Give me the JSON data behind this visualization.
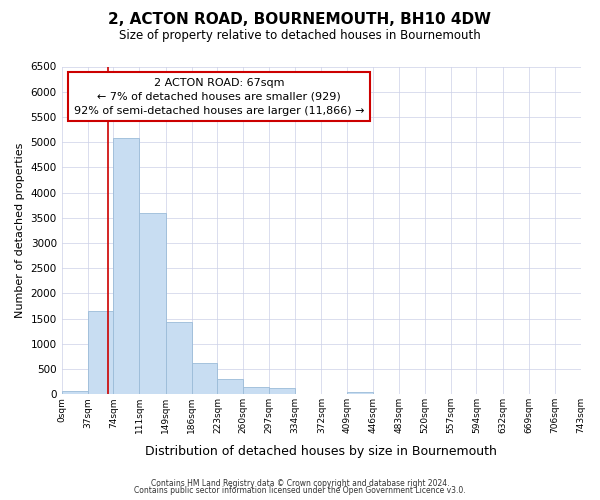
{
  "title": "2, ACTON ROAD, BOURNEMOUTH, BH10 4DW",
  "subtitle": "Size of property relative to detached houses in Bournemouth",
  "xlabel": "Distribution of detached houses by size in Bournemouth",
  "ylabel": "Number of detached properties",
  "bar_edges": [
    0,
    37,
    74,
    111,
    149,
    186,
    223,
    260,
    297,
    334,
    372,
    409,
    446,
    483,
    520,
    557,
    594,
    632,
    669,
    706,
    743
  ],
  "bar_heights": [
    70,
    1650,
    5080,
    3600,
    1430,
    620,
    310,
    150,
    120,
    0,
    0,
    50,
    0,
    0,
    0,
    0,
    0,
    0,
    0,
    0
  ],
  "bar_color": "#c8ddf2",
  "bar_edgecolor": "#9bbbd8",
  "property_line_x": 67,
  "property_line_color": "#cc0000",
  "annotation_line1": "2 ACTON ROAD: 67sqm",
  "annotation_line2": "← 7% of detached houses are smaller (929)",
  "annotation_line3": "92% of semi-detached houses are larger (11,866) →",
  "annotation_box_color": "#cc0000",
  "ylim": [
    0,
    6500
  ],
  "yticks": [
    0,
    500,
    1000,
    1500,
    2000,
    2500,
    3000,
    3500,
    4000,
    4500,
    5000,
    5500,
    6000,
    6500
  ],
  "xtick_labels": [
    "0sqm",
    "37sqm",
    "74sqm",
    "111sqm",
    "149sqm",
    "186sqm",
    "223sqm",
    "260sqm",
    "297sqm",
    "334sqm",
    "372sqm",
    "409sqm",
    "446sqm",
    "483sqm",
    "520sqm",
    "557sqm",
    "594sqm",
    "632sqm",
    "669sqm",
    "706sqm",
    "743sqm"
  ],
  "footer_line1": "Contains HM Land Registry data © Crown copyright and database right 2024.",
  "footer_line2": "Contains public sector information licensed under the Open Government Licence v3.0.",
  "background_color": "#ffffff",
  "grid_color": "#ccd0e8"
}
